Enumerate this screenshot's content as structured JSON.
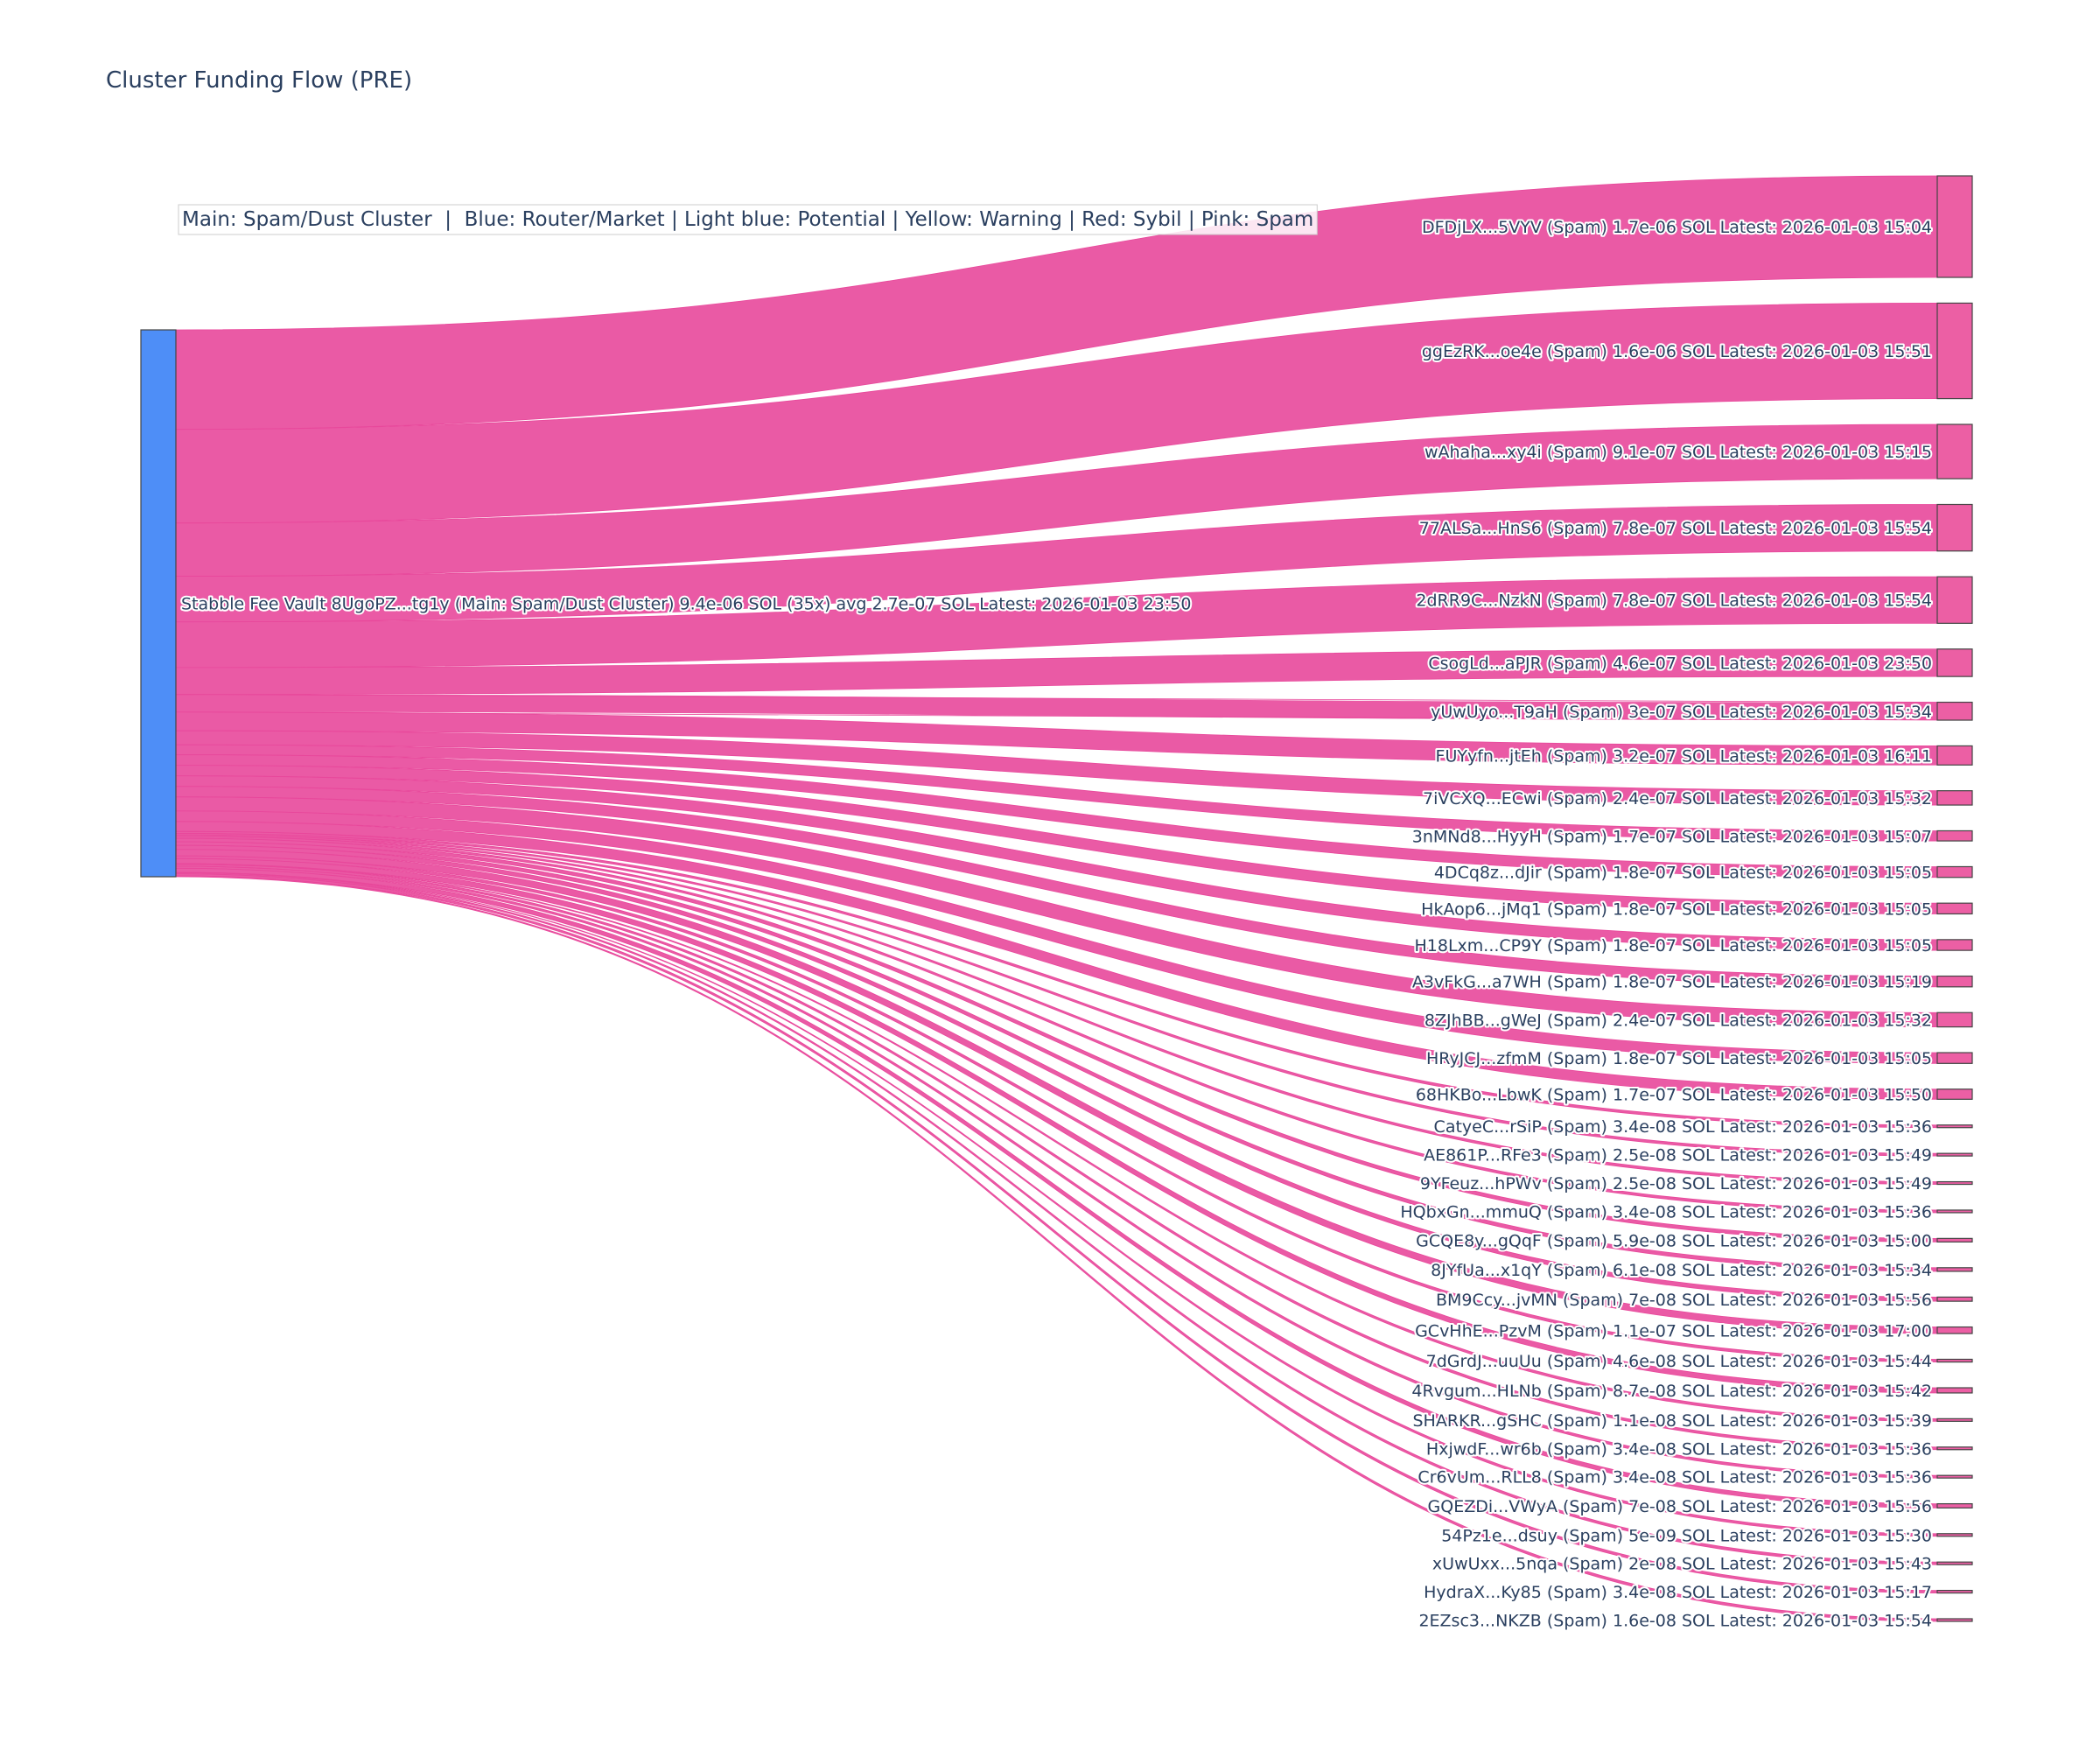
{
  "chart_data": {
    "type": "sankey",
    "title": "Cluster Funding Flow (PRE)",
    "legend": "Main: Spam/Dust Cluster  |  Blue: Router/Market | Light blue: Potential | Yellow: Warning | Red: Sybil | Pink: Spam",
    "colors": {
      "source_node": "#4e8ef7",
      "link": "#e8489b",
      "target_node": "#ec5fa4",
      "node_border": "#444444",
      "legend_border": "#cccccc"
    },
    "source": {
      "label": "Stabble Fee Vault 8UgoPZ...tg1y (Main: Spam/Dust Cluster) 9.4e-06 SOL (35x) avg 2.7e-07 SOL Latest: 2026-01-03 23:50",
      "value": 9.4e-06
    },
    "targets": [
      {
        "label": "DFDjLX...5VYV (Spam) 1.7e-06 SOL Latest: 2026-01-03 15:04",
        "value": 1.7e-06
      },
      {
        "label": "ggEzRK...oe4e (Spam) 1.6e-06 SOL Latest: 2026-01-03 15:51",
        "value": 1.6e-06
      },
      {
        "label": "wAhaha...xy4i (Spam) 9.1e-07 SOL Latest: 2026-01-03 15:15",
        "value": 9.1e-07
      },
      {
        "label": "77ALSa...HnS6 (Spam) 7.8e-07 SOL Latest: 2026-01-03 15:54",
        "value": 7.8e-07
      },
      {
        "label": "2dRR9C...NzkN (Spam) 7.8e-07 SOL Latest: 2026-01-03 15:54",
        "value": 7.8e-07
      },
      {
        "label": "CsogLd...aPJR (Spam) 4.6e-07 SOL Latest: 2026-01-03 23:50",
        "value": 4.6e-07
      },
      {
        "label": "yUwUyo...T9aH (Spam) 3e-07 SOL Latest: 2026-01-03 15:34",
        "value": 3e-07
      },
      {
        "label": "FUYyfn...jtEh (Spam) 3.2e-07 SOL Latest: 2026-01-03 16:11",
        "value": 3.2e-07
      },
      {
        "label": "7iVCXQ...ECwi (Spam) 2.4e-07 SOL Latest: 2026-01-03 15:32",
        "value": 2.4e-07
      },
      {
        "label": "3nMNd8...HyyH (Spam) 1.7e-07 SOL Latest: 2026-01-03 15:07",
        "value": 1.7e-07
      },
      {
        "label": "4DCq8z...dJir (Spam) 1.8e-07 SOL Latest: 2026-01-03 15:05",
        "value": 1.8e-07
      },
      {
        "label": "HkAop6...jMq1 (Spam) 1.8e-07 SOL Latest: 2026-01-03 15:05",
        "value": 1.8e-07
      },
      {
        "label": "H18Lxm...CP9Y (Spam) 1.8e-07 SOL Latest: 2026-01-03 15:05",
        "value": 1.8e-07
      },
      {
        "label": "A3vFkG...a7WH (Spam) 1.8e-07 SOL Latest: 2026-01-03 15:19",
        "value": 1.8e-07
      },
      {
        "label": "8ZJhBB...gWeJ (Spam) 2.4e-07 SOL Latest: 2026-01-03 15:32",
        "value": 2.4e-07
      },
      {
        "label": "HRyJCJ...zfmM (Spam) 1.8e-07 SOL Latest: 2026-01-03 15:05",
        "value": 1.8e-07
      },
      {
        "label": "68HKBo...LbwK (Spam) 1.7e-07 SOL Latest: 2026-01-03 15:50",
        "value": 1.7e-07
      },
      {
        "label": "CatyeC...rSiP (Spam) 3.4e-08 SOL Latest: 2026-01-03 15:36",
        "value": 3.4e-08
      },
      {
        "label": "AE861P...RFe3 (Spam) 2.5e-08 SOL Latest: 2026-01-03 15:49",
        "value": 2.5e-08
      },
      {
        "label": "9YFeuz...hPWv (Spam) 2.5e-08 SOL Latest: 2026-01-03 15:49",
        "value": 2.5e-08
      },
      {
        "label": "HQbxGn...mmuQ (Spam) 3.4e-08 SOL Latest: 2026-01-03 15:36",
        "value": 3.4e-08
      },
      {
        "label": "GCQE8y...gQqF (Spam) 5.9e-08 SOL Latest: 2026-01-03 15:00",
        "value": 5.9e-08
      },
      {
        "label": "8JYfUa...x1qY (Spam) 6.1e-08 SOL Latest: 2026-01-03 15:34",
        "value": 6.1e-08
      },
      {
        "label": "BM9Ccy...jvMN (Spam) 7e-08 SOL Latest: 2026-01-03 15:56",
        "value": 7e-08
      },
      {
        "label": "GCvHhE...PzvM (Spam) 1.1e-07 SOL Latest: 2026-01-03 17:00",
        "value": 1.1e-07
      },
      {
        "label": "7dGrdJ...uuUu (Spam) 4.6e-08 SOL Latest: 2026-01-03 15:44",
        "value": 4.6e-08
      },
      {
        "label": "4Rvgum...HLNb (Spam) 8.7e-08 SOL Latest: 2026-01-03 15:42",
        "value": 8.7e-08
      },
      {
        "label": "SHARKR...gSHC (Spam) 1.1e-08 SOL Latest: 2026-01-03 15:39",
        "value": 1.1e-08
      },
      {
        "label": "HxjwdF...wr6b (Spam) 3.4e-08 SOL Latest: 2026-01-03 15:36",
        "value": 3.4e-08
      },
      {
        "label": "Cr6vUm...RLL8 (Spam) 3.4e-08 SOL Latest: 2026-01-03 15:36",
        "value": 3.4e-08
      },
      {
        "label": "GQEZDi...VWyA (Spam) 7e-08 SOL Latest: 2026-01-03 15:56",
        "value": 7e-08
      },
      {
        "label": "54Pz1e...dsuy (Spam) 5e-09 SOL Latest: 2026-01-03 15:30",
        "value": 5e-09
      },
      {
        "label": "xUwUxx...5nqa (Spam) 2e-08 SOL Latest: 2026-01-03 15:43",
        "value": 2e-08
      },
      {
        "label": "HydraX...Ky85 (Spam) 3.4e-08 SOL Latest: 2026-01-03 15:17",
        "value": 3.4e-08
      },
      {
        "label": "2EZsc3...NKZB (Spam) 1.6e-08 SOL Latest: 2026-01-03 15:54",
        "value": 1.6e-08
      }
    ]
  }
}
